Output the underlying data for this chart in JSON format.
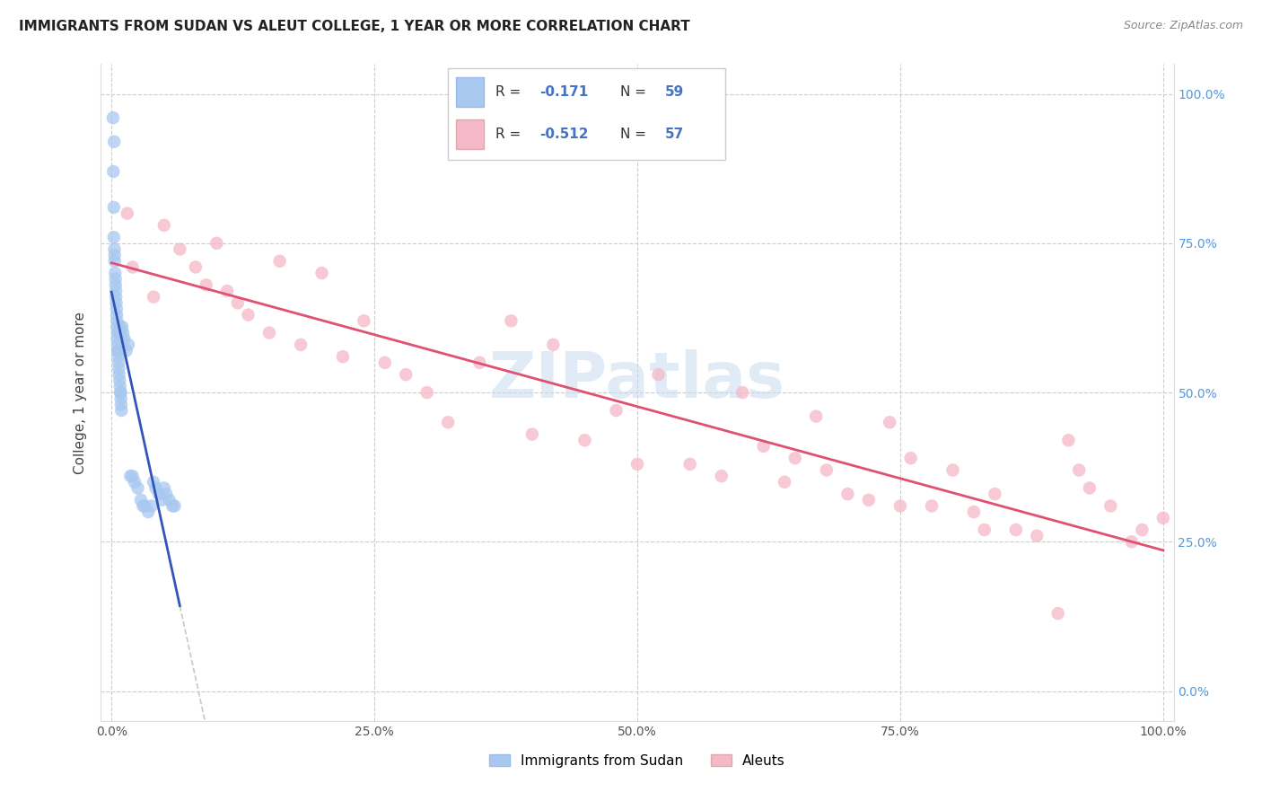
{
  "title": "IMMIGRANTS FROM SUDAN VS ALEUT COLLEGE, 1 YEAR OR MORE CORRELATION CHART",
  "source": "Source: ZipAtlas.com",
  "ylabel": "College, 1 year or more",
  "watermark": "ZIPatlas",
  "legend_label1": "Immigrants from Sudan",
  "legend_label2": "Aleuts",
  "r1": "-0.171",
  "n1": "59",
  "r2": "-0.512",
  "n2": "57",
  "color_blue": "#A8C8F0",
  "color_pink": "#F5B8C8",
  "color_blue_line": "#3355BB",
  "color_pink_line": "#E05070",
  "color_dashed": "#BBBBBB",
  "sudan_x": [
    0.15,
    0.18,
    0.22,
    0.22,
    0.25,
    0.28,
    0.3,
    0.3,
    0.35,
    0.38,
    0.4,
    0.42,
    0.42,
    0.45,
    0.48,
    0.5,
    0.52,
    0.52,
    0.55,
    0.55,
    0.58,
    0.6,
    0.62,
    0.65,
    0.68,
    0.7,
    0.72,
    0.75,
    0.78,
    0.8,
    0.82,
    0.85,
    0.88,
    0.9,
    0.92,
    0.95,
    1.0,
    1.1,
    1.2,
    1.4,
    1.6,
    1.8,
    2.0,
    2.2,
    2.5,
    2.8,
    3.0,
    3.2,
    3.5,
    3.8,
    4.0,
    4.2,
    4.5,
    4.8,
    5.0,
    5.2,
    5.5,
    5.8,
    6.0
  ],
  "sudan_y": [
    96,
    87,
    81,
    76,
    92,
    74,
    73,
    72,
    70,
    69,
    68,
    67,
    66,
    65,
    64,
    63,
    62,
    61,
    60,
    59,
    58,
    57,
    57,
    56,
    55,
    54,
    53,
    60,
    52,
    61,
    51,
    50,
    50,
    49,
    48,
    47,
    61,
    60,
    59,
    57,
    58,
    36,
    36,
    35,
    34,
    32,
    31,
    31,
    30,
    31,
    35,
    34,
    33,
    32,
    34,
    33,
    32,
    31,
    31
  ],
  "aleut_x": [
    1.5,
    2.0,
    4.0,
    5.0,
    6.5,
    8.0,
    9.0,
    10.0,
    11.0,
    12.0,
    13.0,
    15.0,
    16.0,
    18.0,
    20.0,
    22.0,
    24.0,
    26.0,
    28.0,
    30.0,
    32.0,
    35.0,
    38.0,
    40.0,
    42.0,
    45.0,
    48.0,
    50.0,
    52.0,
    55.0,
    58.0,
    60.0,
    62.0,
    64.0,
    65.0,
    67.0,
    68.0,
    70.0,
    72.0,
    74.0,
    75.0,
    76.0,
    78.0,
    80.0,
    82.0,
    83.0,
    84.0,
    86.0,
    88.0,
    90.0,
    91.0,
    92.0,
    93.0,
    95.0,
    97.0,
    98.0,
    100.0
  ],
  "aleut_y": [
    80,
    71,
    66,
    78,
    74,
    71,
    68,
    75,
    67,
    65,
    63,
    60,
    72,
    58,
    70,
    56,
    62,
    55,
    53,
    50,
    45,
    55,
    62,
    43,
    58,
    42,
    47,
    38,
    53,
    38,
    36,
    50,
    41,
    35,
    39,
    46,
    37,
    33,
    32,
    45,
    31,
    39,
    31,
    37,
    30,
    27,
    33,
    27,
    26,
    13,
    42,
    37,
    34,
    31,
    25,
    27,
    29
  ],
  "ylim": [
    -5,
    105
  ],
  "xlim": [
    -1,
    101
  ],
  "ytick_vals": [
    0,
    25,
    50,
    75,
    100
  ],
  "ytick_labels_left": [
    "",
    "",
    "",
    "",
    ""
  ],
  "ytick_labels_right": [
    "0.0%",
    "25.0%",
    "50.0%",
    "75.0%",
    "100.0%"
  ],
  "xtick_vals": [
    0,
    25,
    50,
    75,
    100
  ],
  "xtick_labels": [
    "0.0%",
    "25.0%",
    "50.0%",
    "75.0%",
    "100.0%"
  ]
}
